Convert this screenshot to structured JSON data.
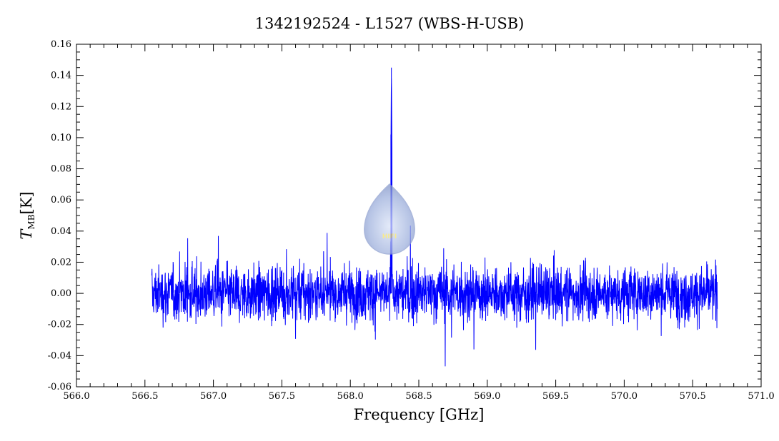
{
  "chart_data": {
    "type": "line",
    "title": "1342192524 - L1527 (WBS-H-USB)",
    "xlabel": "Frequency [GHz]",
    "ylabel": "T",
    "ylabel_subscript": "MB",
    "ylabel_unit": "[K]",
    "xlim": [
      566.0,
      571.0
    ],
    "ylim": [
      -0.06,
      0.16
    ],
    "x_ticks": [
      "566.0",
      "566.5",
      "567.0",
      "567.5",
      "568.0",
      "568.5",
      "569.0",
      "569.5",
      "570.0",
      "570.5",
      "571.0"
    ],
    "y_ticks": [
      "-0.06",
      "-0.04",
      "-0.02",
      "0.00",
      "0.02",
      "0.04",
      "0.06",
      "0.08",
      "0.10",
      "0.12",
      "0.14",
      "0.16"
    ],
    "grid": false,
    "legend": "none",
    "series": [
      {
        "color": "#0000ff",
        "x_range": [
          566.55,
          570.68
        ],
        "noise_rms": 0.012,
        "peak": {
          "x": 568.3,
          "y": 0.145
        },
        "secondary_peak": {
          "x": 568.3,
          "y": 0.102
        }
      }
    ],
    "watermark": {
      "text": "HIFI",
      "shape": "teardrop",
      "color": "#a8b8e0"
    }
  }
}
